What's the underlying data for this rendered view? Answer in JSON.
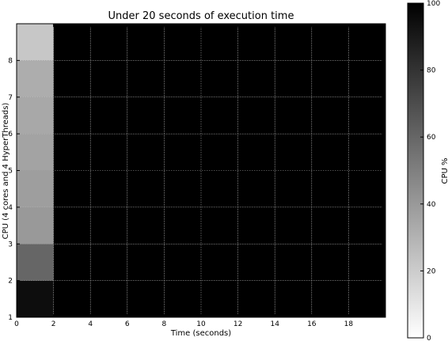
{
  "chart_data": {
    "type": "heatmap",
    "title": "Under 20 seconds of execution time",
    "xlabel": "Time (seconds)",
    "ylabel": "CPU (4 cores and 4 HyperThreads)",
    "colorbar_label": "CPU %",
    "xlim": [
      0,
      20
    ],
    "ylim": [
      1,
      9
    ],
    "x_ticks": [
      0,
      2,
      4,
      6,
      8,
      10,
      12,
      14,
      16,
      18
    ],
    "y_ticks": [
      1,
      2,
      3,
      4,
      5,
      6,
      7,
      8
    ],
    "colorbar_range": [
      0,
      100
    ],
    "colorbar_ticks": [
      0,
      20,
      40,
      60,
      80,
      100
    ],
    "colormap": "reversed grayscale (0 = white, 100 = black)",
    "grid": true,
    "x_bin_edges": [
      0,
      2,
      4,
      6,
      8,
      10,
      12,
      14,
      16,
      18,
      20
    ],
    "y_bin_edges": [
      1,
      2,
      3,
      4,
      5,
      6,
      7,
      8,
      9
    ],
    "rows": [
      {
        "cpu": 1,
        "values": [
          95,
          100,
          100,
          100,
          100,
          100,
          100,
          100,
          100,
          100
        ]
      },
      {
        "cpu": 2,
        "values": [
          60,
          100,
          100,
          100,
          100,
          100,
          100,
          100,
          100,
          100
        ]
      },
      {
        "cpu": 3,
        "values": [
          40,
          100,
          100,
          100,
          100,
          100,
          100,
          100,
          100,
          100
        ]
      },
      {
        "cpu": 4,
        "values": [
          38,
          100,
          100,
          100,
          100,
          100,
          100,
          100,
          100,
          100
        ]
      },
      {
        "cpu": 5,
        "values": [
          36,
          100,
          100,
          100,
          100,
          100,
          100,
          100,
          100,
          100
        ]
      },
      {
        "cpu": 6,
        "values": [
          34,
          100,
          100,
          100,
          100,
          100,
          100,
          100,
          100,
          100
        ]
      },
      {
        "cpu": 7,
        "values": [
          32,
          100,
          100,
          100,
          100,
          100,
          100,
          100,
          100,
          100
        ]
      },
      {
        "cpu": 8,
        "values": [
          22,
          100,
          100,
          100,
          100,
          100,
          100,
          100,
          100,
          100
        ]
      }
    ]
  }
}
